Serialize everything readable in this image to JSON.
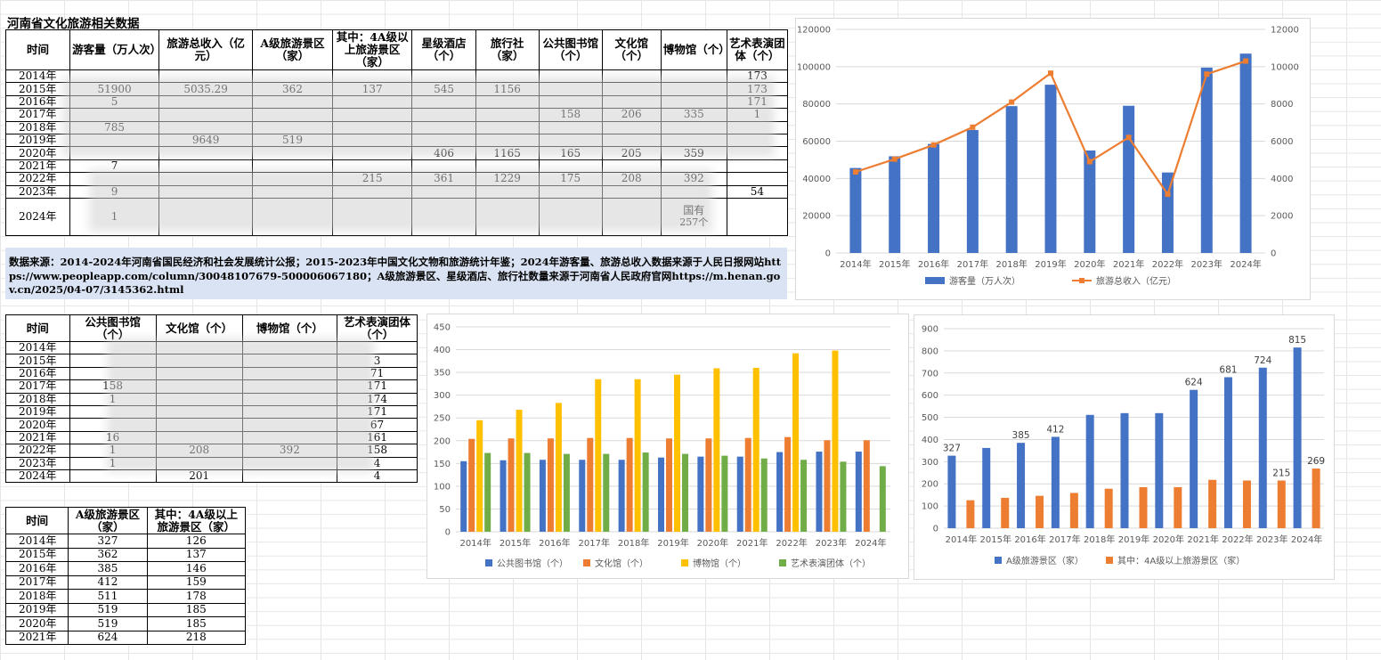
{
  "table1": {
    "title": "河南省文化旅游相关数据",
    "headers": [
      "时间",
      "游客量（万人次）",
      "旅游总收入（亿元）",
      "A级旅游景区（家）",
      "其中：4A级以上旅游景区（家）",
      "星级酒店（个）",
      "旅行社（家）",
      "公共图书馆（个）",
      "文化馆（个）",
      "博物馆（个）",
      "艺术表演团体（个）"
    ],
    "rows": [
      [
        "2014年",
        "",
        "",
        "",
        "",
        "",
        "",
        "",
        "",
        "",
        "173"
      ],
      [
        "2015年",
        "51900",
        "5035.29",
        "362",
        "137",
        "545",
        "1156",
        "",
        "",
        "",
        "173"
      ],
      [
        "2016年",
        "5",
        "",
        "",
        "",
        "",
        "",
        "",
        "",
        "",
        "171"
      ],
      [
        "2017年",
        "",
        "",
        "",
        "",
        "",
        "",
        "158",
        "206",
        "335",
        "1"
      ],
      [
        "2018年",
        "785",
        "",
        "",
        "",
        "",
        "",
        "",
        "",
        "",
        ""
      ],
      [
        "2019年",
        "",
        "9649",
        "519",
        "",
        "",
        "",
        "",
        "",
        "",
        ""
      ],
      [
        "2020年",
        "",
        "",
        "",
        "",
        "406",
        "1165",
        "165",
        "205",
        "359",
        ""
      ],
      [
        "2021年",
        "7",
        "",
        "",
        "",
        "",
        "",
        "",
        "",
        "",
        ""
      ],
      [
        "2022年",
        "",
        "",
        "",
        "215",
        "361",
        "1229",
        "175",
        "208",
        "392",
        ""
      ],
      [
        "2023年",
        "9",
        "",
        "",
        "",
        "",
        "",
        "",
        "",
        "",
        "54"
      ],
      [
        "2024年",
        "1",
        "",
        "",
        "",
        "",
        "",
        "",
        "",
        "国有",
        ""
      ]
    ],
    "extra_2024": "257个"
  },
  "source_text": "数据来源：2014-2024年河南省国民经济和社会发展统计公报；2015-2023年中国文化文物和旅游统计年鉴；2024年游客量、旅游总收入数据来源于人民日报网站https://www.peopleapp.com/column/30048107679-500006067180；A级旅游景区、星级酒店、旅行社数量来源于河南省人民政府官网https://m.henan.gov.cn/2025/04-07/3145362.html",
  "table2": {
    "headers": [
      "时间",
      "公共图书馆（个）",
      "文化馆（个）",
      "博物馆（个）",
      "艺术表演团体（个）"
    ],
    "rows": [
      [
        "2014年",
        "",
        "",
        "",
        ""
      ],
      [
        "2015年",
        "",
        "",
        "",
        "3"
      ],
      [
        "2016年",
        "",
        "",
        "",
        "71"
      ],
      [
        "2017年",
        "158",
        "",
        "",
        "171"
      ],
      [
        "2018年",
        "1",
        "",
        "",
        "174"
      ],
      [
        "2019年",
        "",
        "",
        "",
        "171"
      ],
      [
        "2020年",
        "",
        "",
        "",
        "67"
      ],
      [
        "2021年",
        "16",
        "",
        "",
        "161"
      ],
      [
        "2022年",
        "1",
        "208",
        "392",
        "158"
      ],
      [
        "2023年",
        "1",
        "",
        "",
        "4"
      ],
      [
        "2024年",
        "",
        "201",
        "",
        "4"
      ]
    ]
  },
  "table3": {
    "headers": [
      "时间",
      "A级旅游景区（家）",
      "其中：4A级以上旅游景区（家）"
    ],
    "rows": [
      [
        "2014年",
        "327",
        "126"
      ],
      [
        "2015年",
        "362",
        "137"
      ],
      [
        "2016年",
        "385",
        "146"
      ],
      [
        "2017年",
        "412",
        "159"
      ],
      [
        "2018年",
        "511",
        "178"
      ],
      [
        "2019年",
        "519",
        "185"
      ],
      [
        "2020年",
        "519",
        "185"
      ],
      [
        "2021年",
        "624",
        "218"
      ]
    ]
  },
  "chart_data": [
    {
      "type": "bar+line",
      "categories": [
        "2014年",
        "2015年",
        "2016年",
        "2017年",
        "2018年",
        "2019年",
        "2020年",
        "2021年",
        "2022年",
        "2023年",
        "2024年"
      ],
      "series": [
        {
          "name": "游客量（万人次）",
          "type": "bar",
          "axis": "left",
          "color": "#4472c4",
          "values": [
            45600,
            51900,
            58500,
            66000,
            78800,
            90300,
            55000,
            79000,
            43200,
            99500,
            107000
          ]
        },
        {
          "name": "旅游总收入（亿元）",
          "type": "line",
          "axis": "right",
          "color": "#ed7d31",
          "values": [
            4350,
            5035.29,
            5800,
            6750,
            8100,
            9649,
            4900,
            6200,
            3150,
            9600,
            10300
          ]
        }
      ],
      "ylim_left": [
        0,
        120000
      ],
      "yticks_left": [
        "0",
        "20000",
        "40000",
        "60000",
        "80000",
        "100000",
        "120000"
      ],
      "ylim_right": [
        0,
        12000
      ],
      "yticks_right": [
        "0",
        "2000",
        "4000",
        "6000",
        "8000",
        "10000",
        "12000"
      ],
      "grid": true,
      "legend": "bottom"
    },
    {
      "type": "bar",
      "categories": [
        "2014年",
        "2015年",
        "2016年",
        "2017年",
        "2018年",
        "2019年",
        "2020年",
        "2021年",
        "2022年",
        "2023年",
        "2024年"
      ],
      "series": [
        {
          "name": "公共图书馆（个）",
          "color": "#4472c4",
          "values": [
            155,
            157,
            158,
            158,
            158,
            163,
            165,
            165,
            175,
            176,
            176
          ]
        },
        {
          "name": "文化馆（个）",
          "color": "#ed7d31",
          "values": [
            204,
            205,
            205,
            206,
            206,
            205,
            205,
            206,
            208,
            201,
            201
          ]
        },
        {
          "name": "博物馆（个）",
          "color": "#ffc000",
          "values": [
            245,
            268,
            283,
            335,
            335,
            345,
            359,
            360,
            392,
            398,
            null
          ]
        },
        {
          "name": "艺术表演团体（个）",
          "color": "#70ad47",
          "values": [
            173,
            173,
            171,
            171,
            174,
            171,
            167,
            161,
            158,
            154,
            144
          ]
        }
      ],
      "ylim": [
        0,
        450
      ],
      "yticks": [
        "0",
        "50",
        "100",
        "150",
        "200",
        "250",
        "300",
        "350",
        "400",
        "450"
      ],
      "grid": true,
      "legend": "bottom"
    },
    {
      "type": "bar",
      "categories": [
        "2014年",
        "2015年",
        "2016年",
        "2017年",
        "2018年",
        "2019年",
        "2020年",
        "2021年",
        "2022年",
        "2023年",
        "2024年"
      ],
      "series": [
        {
          "name": "A级旅游景区（家）",
          "color": "#4472c4",
          "values": [
            327,
            362,
            385,
            412,
            511,
            519,
            519,
            624,
            681,
            724,
            815
          ]
        },
        {
          "name": "其中：4A级以上旅游景区（家）",
          "color": "#ed7d31",
          "values": [
            126,
            137,
            146,
            159,
            178,
            185,
            185,
            218,
            215,
            215,
            269
          ]
        }
      ],
      "data_labels": [
        "327",
        "",
        "385",
        "412",
        "",
        "",
        "",
        "624",
        "681",
        "724",
        "815",
        "",
        "",
        "",
        "",
        "",
        "",
        "",
        "",
        "",
        "215",
        "269"
      ],
      "ylim": [
        0,
        900
      ],
      "yticks": [
        "0",
        "100",
        "200",
        "300",
        "400",
        "500",
        "600",
        "700",
        "800",
        "900"
      ],
      "grid": true,
      "legend": "bottom"
    }
  ]
}
